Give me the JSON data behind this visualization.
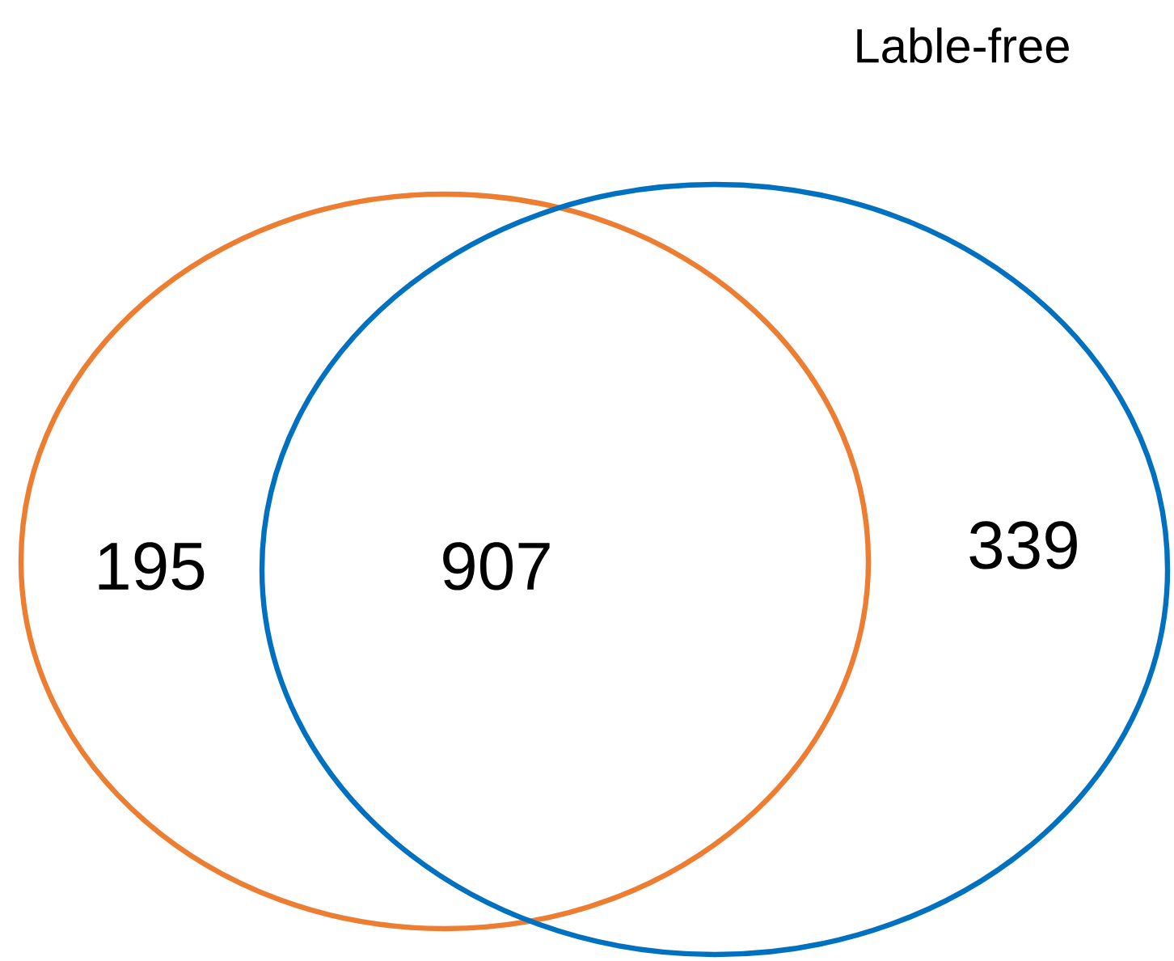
{
  "chart_data": {
    "type": "other",
    "categories": [
      null,
      null,
      null
    ],
    "values": [
      195,
      907,
      339
    ],
    "data_labels": true,
    "annotations": [
      "Lable-free"
    ]
  }
}
